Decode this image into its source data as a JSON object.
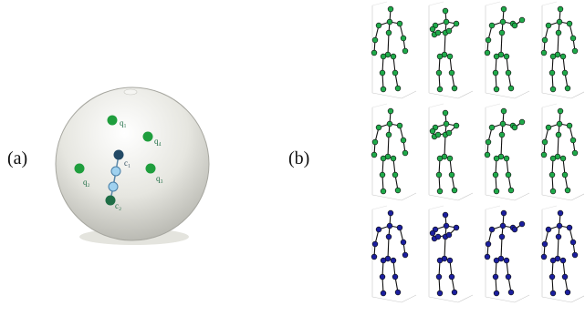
{
  "figure": {
    "panel_a_label": "(a)",
    "panel_b_label": "(b)"
  },
  "sphere": {
    "colors": {
      "sphere_fill": "#d9d9d2",
      "sphere_edge": "#a7a7a0",
      "point_green": "#1f9e3d",
      "chain_dark": "#234a66",
      "chain_light": "#9fd1ef"
    },
    "points": [
      {
        "label": "q₁"
      },
      {
        "label": "q₄"
      },
      {
        "label": "q₂"
      },
      {
        "label": "q₃"
      }
    ],
    "chain_labels": [
      "c₁",
      "c₂"
    ]
  },
  "skeleton_grid": {
    "rows": 3,
    "cols": 4,
    "row_colors": [
      "#1faa4a",
      "#1faa4a",
      "#1b1f9e"
    ],
    "poses": [
      "stand",
      "bend",
      "arm-out",
      "stand"
    ]
  }
}
